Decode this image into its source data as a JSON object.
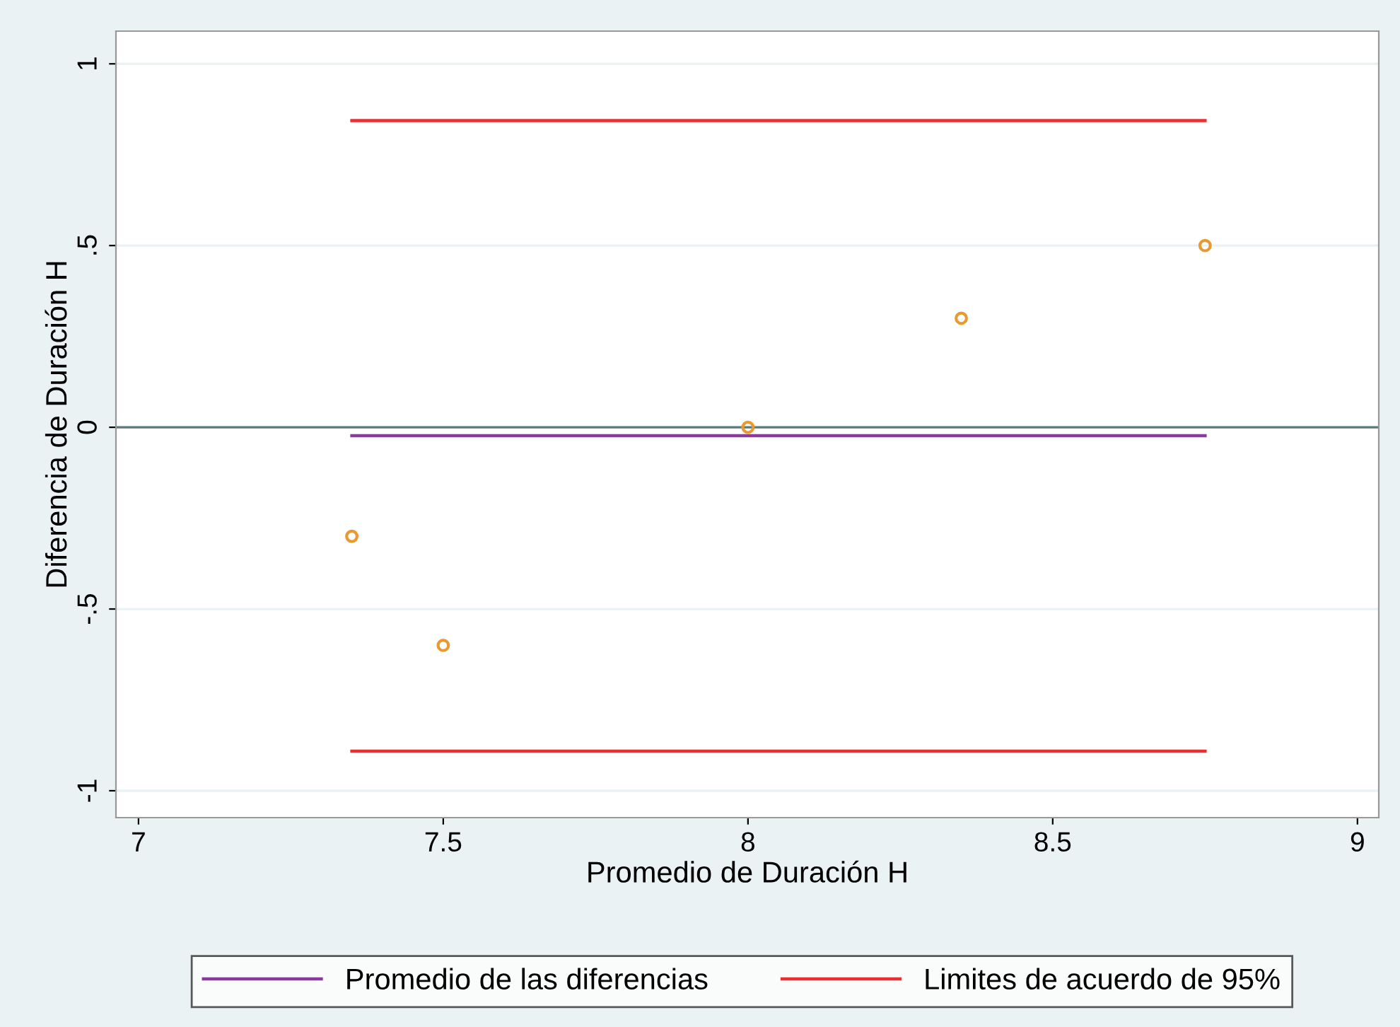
{
  "chart_data": {
    "type": "scatter",
    "xlabel": "Promedio de Duración H",
    "ylabel": "Diferencia de Duración H",
    "xlim": [
      6.963,
      9.035
    ],
    "ylim": [
      -1.074,
      1.09
    ],
    "xticks": [
      7,
      {
        "value": 7.5,
        "label": "7.5"
      },
      8,
      {
        "value": 8.5,
        "label": "8.5"
      },
      9
    ],
    "yticks": [
      -1,
      {
        "value": -0.5,
        "label": "-.5"
      },
      0,
      {
        "value": 0.5,
        "label": ".5"
      },
      1
    ],
    "grid": "y",
    "legend": "bottom",
    "ref_lines": [
      {
        "axis": "y",
        "value": 0,
        "color": "#5a7a80"
      }
    ],
    "series": [
      {
        "marker": "circle",
        "color": "#e89a30",
        "x": [
          7.35,
          7.5,
          8,
          8.35,
          8.75
        ],
        "values": [
          -0.3,
          -0.6,
          0,
          0.3,
          0.5
        ]
      },
      {
        "type": "line",
        "name": "Promedio de las diferencias",
        "color": "#8a3a9a",
        "x": [
          7.35,
          8.75
        ],
        "values": [
          -0.023,
          -0.023
        ]
      },
      {
        "type": "line",
        "name": "Limites de acuerdo de 95%",
        "color": "#e83030",
        "x": [
          7.35,
          8.75
        ],
        "values": [
          0.844,
          0.844
        ]
      },
      {
        "type": "line",
        "color": "#e83030",
        "x": [
          7.35,
          8.75
        ],
        "values": [
          -0.891,
          -0.891
        ]
      }
    ]
  }
}
